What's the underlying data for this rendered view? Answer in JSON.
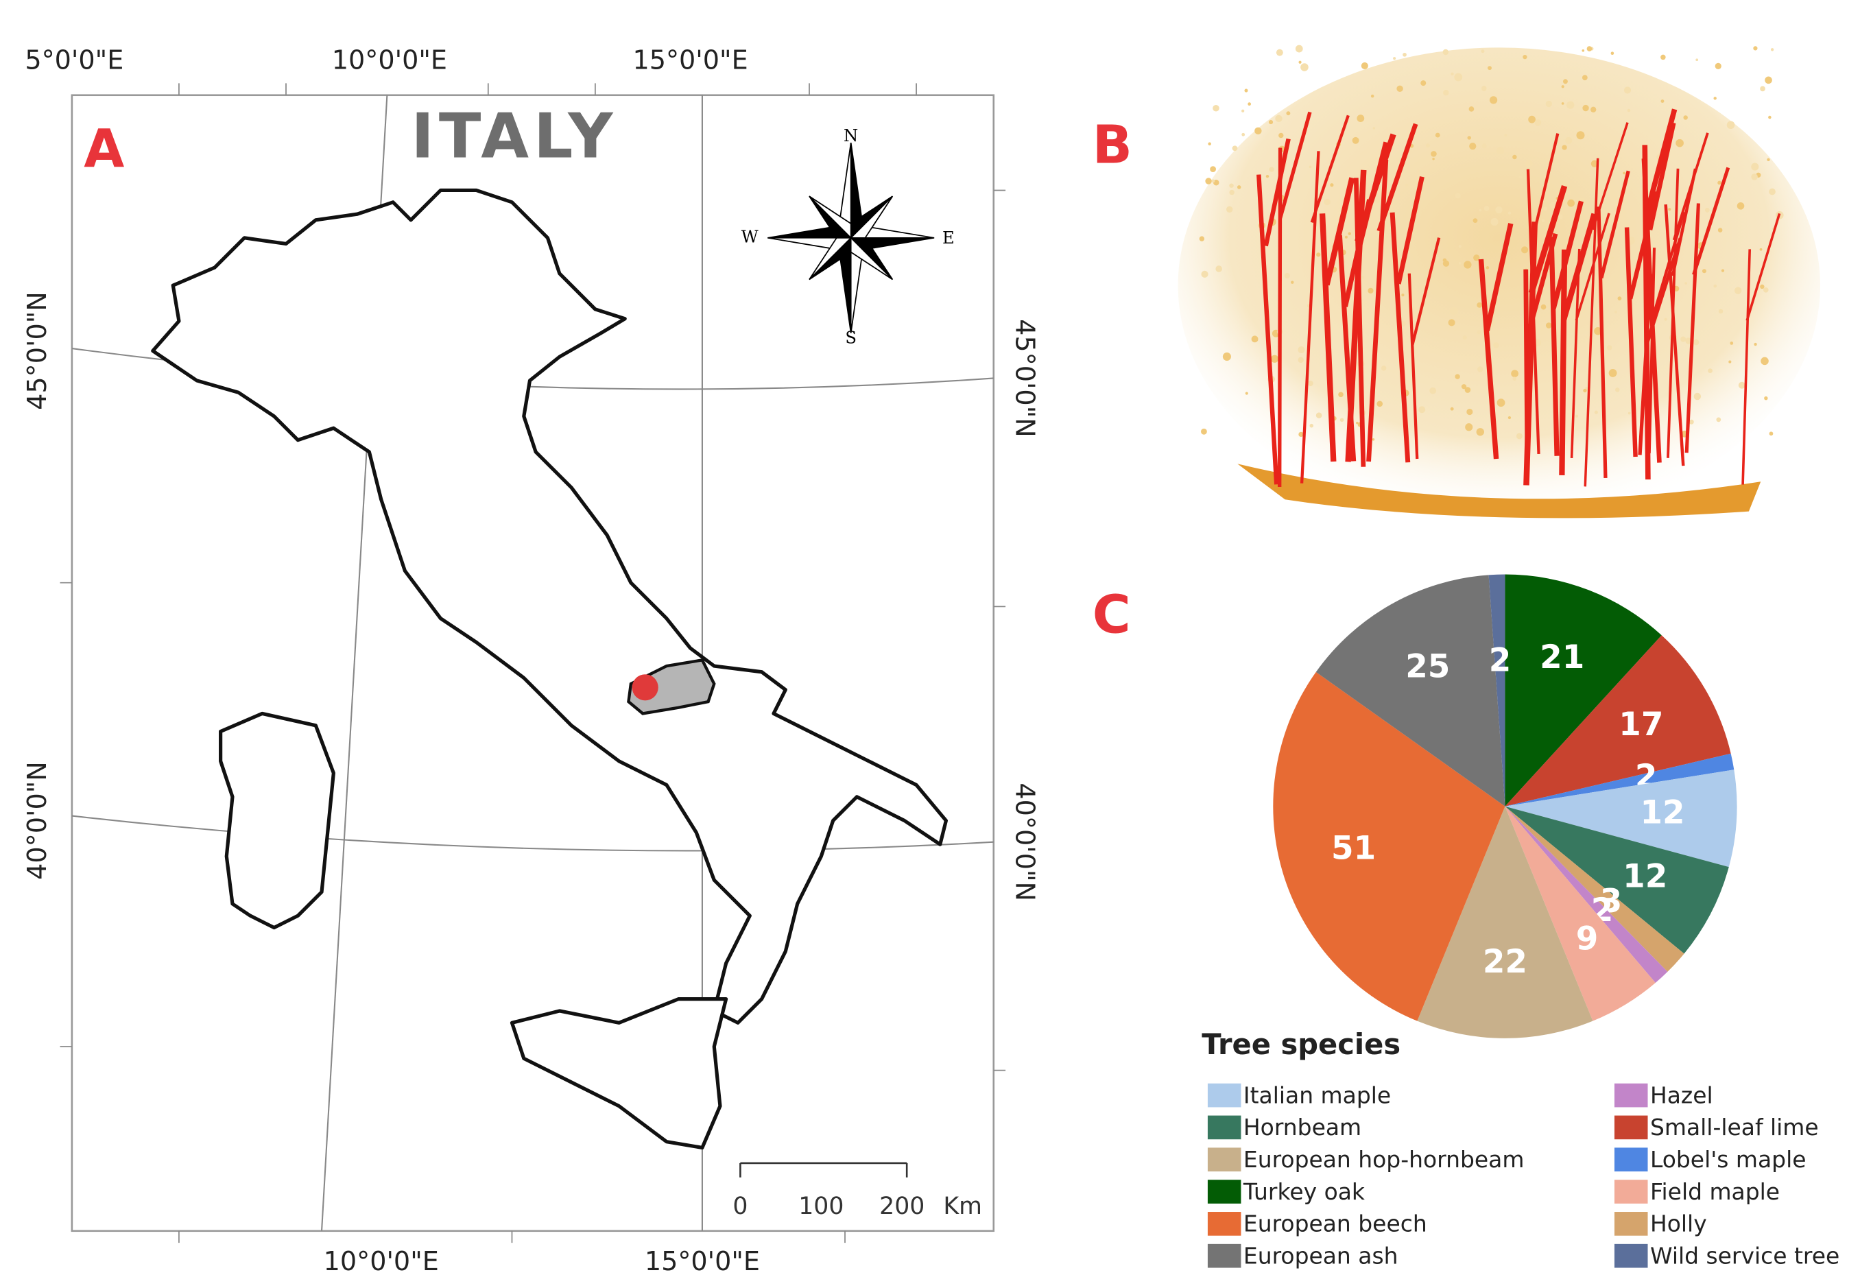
{
  "panel_labels": [
    "A",
    "B",
    "C"
  ],
  "map": {
    "title": "ITALY",
    "top_labels": [
      "5°0'0\"E",
      "10°0'0\"E",
      "15°0'0\"E"
    ],
    "bottom_labels": [
      "10°0'0\"E",
      "15°0'0\"E"
    ],
    "left_labels": [
      "45°0'0\"N",
      "40°0'0\"N"
    ],
    "right_labels": [
      "45°0'0\"N",
      "40°0'0\"N"
    ],
    "compass": [
      "N",
      "W",
      "E",
      "S"
    ],
    "scale": {
      "ticks": [
        "0",
        "100",
        "200"
      ],
      "unit": "Km"
    }
  },
  "chart_data": {
    "type": "pie",
    "legend_title": "Tree species",
    "categories": [
      "Turkey oak",
      "Small-leaf lime",
      "Lobel's maple",
      "Italian maple",
      "Hornbeam",
      "Holly",
      "Hazel",
      "Field maple",
      "European hop-hornbeam",
      "European beech",
      "European ash",
      "Wild service tree"
    ],
    "values": [
      21,
      17,
      2,
      12,
      12,
      3,
      2,
      9,
      22,
      51,
      25,
      2
    ],
    "colors": [
      "#035c05",
      "#c8432f",
      "#4f86e2",
      "#adcbeb",
      "#37785f",
      "#d5a46c",
      "#c285c9",
      "#f2ab98",
      "#c8b08b",
      "#e76b34",
      "#747474",
      "#5b6f9b"
    ]
  }
}
